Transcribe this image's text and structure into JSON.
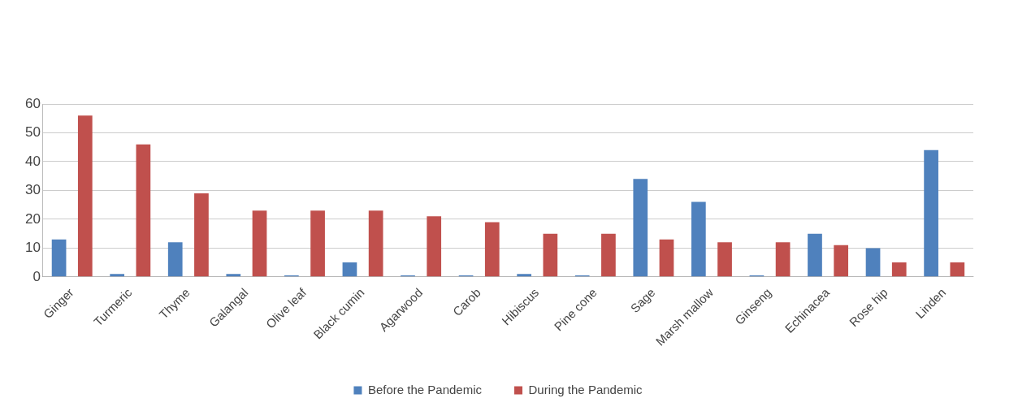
{
  "chart_data": {
    "type": "bar",
    "categories": [
      "Ginger",
      "Turmeric",
      "Thyme",
      "Galangal",
      "Olive leaf",
      "Black cumin",
      "Agarwood",
      "Carob",
      "Hibiscus",
      "Pine cone",
      "Sage",
      "Marsh mallow",
      "Ginseng",
      "Echinacea",
      "Rose hip",
      "Linden"
    ],
    "series": [
      {
        "name": "Before the Pandemic",
        "color": "#4f81bd",
        "values": [
          13,
          1,
          12,
          1,
          0.5,
          5,
          0.5,
          0.5,
          1,
          0.5,
          34,
          26,
          0.5,
          15,
          10,
          44
        ]
      },
      {
        "name": "During the Pandemic",
        "color": "#c0504d",
        "values": [
          56,
          46,
          29,
          23,
          23,
          23,
          21,
          19,
          15,
          15,
          13,
          12,
          12,
          11,
          5,
          5
        ]
      }
    ],
    "ylim": [
      0,
      60
    ],
    "yticks": [
      0,
      10,
      20,
      30,
      40,
      50,
      60
    ],
    "grid": "y",
    "legend": "bottom"
  }
}
